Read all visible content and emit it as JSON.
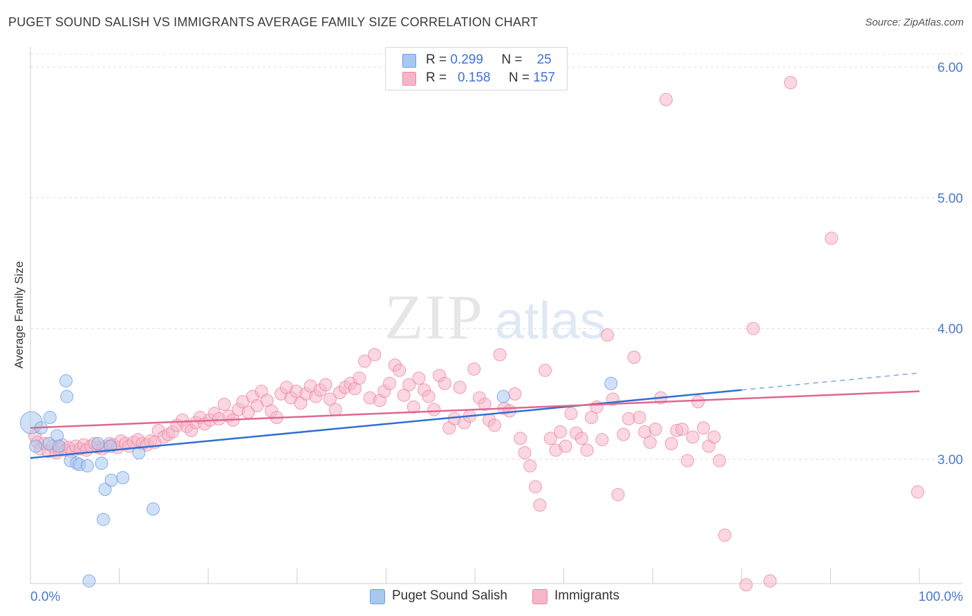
{
  "title": "PUGET SOUND SALISH VS IMMIGRANTS AVERAGE FAMILY SIZE CORRELATION CHART",
  "source": "Source: ZipAtlas.com",
  "watermark": {
    "zip": "ZIP",
    "atlas": "atlas"
  },
  "legend_top": {
    "rows": [
      {
        "r_label": "R =",
        "r_value": "0.299",
        "n_label": "N =",
        "n_value": "25",
        "color": "#a9c8f0"
      },
      {
        "r_label": "R =",
        "r_value": "0.158",
        "n_label": "N =",
        "n_value": "157",
        "color": "#f6b6c9"
      }
    ]
  },
  "chart_data": {
    "type": "scatter",
    "title": "PUGET SOUND SALISH VS IMMIGRANTS AVERAGE FAMILY SIZE CORRELATION CHART",
    "xlabel": "",
    "ylabel": "Average Family Size",
    "x_tick_labels": [
      "0.0%",
      "100.0%"
    ],
    "y_tick_labels": [
      "3.00",
      "4.00",
      "5.00",
      "6.00"
    ],
    "y_ticks": [
      3.0,
      4.0,
      5.0,
      6.0
    ],
    "xlim": [
      0,
      100
    ],
    "ylim": [
      2.05,
      6.1
    ],
    "grid": true,
    "legend_position": "bottom",
    "series": [
      {
        "name": "Puget Sound Salish",
        "color": "#6b9ee0",
        "fill": "#a9c8f0",
        "points": [
          [
            0.1,
            3.28
          ],
          [
            0.6,
            3.1
          ],
          [
            1.2,
            3.24
          ],
          [
            2.1,
            3.12
          ],
          [
            2.2,
            3.32
          ],
          [
            3,
            3.18
          ],
          [
            3.2,
            3.1
          ],
          [
            4,
            3.6
          ],
          [
            4.1,
            3.48
          ],
          [
            4.5,
            2.99
          ],
          [
            5.2,
            2.97
          ],
          [
            5.5,
            2.96
          ],
          [
            6.4,
            2.95
          ],
          [
            6.6,
            2.07
          ],
          [
            7.6,
            3.12
          ],
          [
            8,
            2.97
          ],
          [
            8.2,
            2.54
          ],
          [
            8.4,
            2.77
          ],
          [
            9,
            3.1
          ],
          [
            9.1,
            2.84
          ],
          [
            10.4,
            2.86
          ],
          [
            12.2,
            3.05
          ],
          [
            13.8,
            2.62
          ],
          [
            53.2,
            3.48
          ],
          [
            65.3,
            3.58
          ]
        ],
        "trend": {
          "x0": 0,
          "y0": 3.01,
          "x1": 80,
          "y1": 3.53,
          "dash_to_x": 100,
          "dash_to_y": 3.66
        }
      },
      {
        "name": "Immigrants",
        "color": "#ec86a4",
        "fill": "#f6b6c9",
        "points": [
          [
            0.5,
            3.18
          ],
          [
            0.8,
            3.13
          ],
          [
            1.1,
            3.08
          ],
          [
            1.6,
            3.12
          ],
          [
            2,
            3.06
          ],
          [
            2.5,
            3.1
          ],
          [
            2.9,
            3.05
          ],
          [
            3.2,
            3.08
          ],
          [
            3.6,
            3.11
          ],
          [
            3.9,
            3.07
          ],
          [
            4.3,
            3.09
          ],
          [
            4.7,
            3.06
          ],
          [
            5.1,
            3.1
          ],
          [
            5.6,
            3.08
          ],
          [
            6,
            3.11
          ],
          [
            6.3,
            3.07
          ],
          [
            6.8,
            3.1
          ],
          [
            7.2,
            3.12
          ],
          [
            7.6,
            3.09
          ],
          [
            8.1,
            3.08
          ],
          [
            8.5,
            3.1
          ],
          [
            8.9,
            3.12
          ],
          [
            9.3,
            3.11
          ],
          [
            9.8,
            3.09
          ],
          [
            10.2,
            3.14
          ],
          [
            10.7,
            3.12
          ],
          [
            11.1,
            3.1
          ],
          [
            11.6,
            3.13
          ],
          [
            12.1,
            3.15
          ],
          [
            12.6,
            3.12
          ],
          [
            13.1,
            3.11
          ],
          [
            13.5,
            3.14
          ],
          [
            14,
            3.13
          ],
          [
            14.4,
            3.22
          ],
          [
            15,
            3.17
          ],
          [
            15.5,
            3.19
          ],
          [
            16,
            3.21
          ],
          [
            16.5,
            3.26
          ],
          [
            17.1,
            3.3
          ],
          [
            17.6,
            3.25
          ],
          [
            18.1,
            3.22
          ],
          [
            18.6,
            3.28
          ],
          [
            19.1,
            3.32
          ],
          [
            19.6,
            3.27
          ],
          [
            20.2,
            3.3
          ],
          [
            20.7,
            3.35
          ],
          [
            21.2,
            3.31
          ],
          [
            21.8,
            3.42
          ],
          [
            22.3,
            3.33
          ],
          [
            22.8,
            3.3
          ],
          [
            23.4,
            3.38
          ],
          [
            23.9,
            3.44
          ],
          [
            24.5,
            3.36
          ],
          [
            25,
            3.48
          ],
          [
            25.5,
            3.41
          ],
          [
            26,
            3.52
          ],
          [
            26.6,
            3.45
          ],
          [
            27.1,
            3.37
          ],
          [
            27.7,
            3.32
          ],
          [
            28.2,
            3.5
          ],
          [
            28.8,
            3.55
          ],
          [
            29.3,
            3.47
          ],
          [
            29.9,
            3.52
          ],
          [
            30.4,
            3.43
          ],
          [
            31,
            3.5
          ],
          [
            31.5,
            3.56
          ],
          [
            32.1,
            3.48
          ],
          [
            32.6,
            3.53
          ],
          [
            33.2,
            3.57
          ],
          [
            33.7,
            3.46
          ],
          [
            34.3,
            3.38
          ],
          [
            34.8,
            3.51
          ],
          [
            35.4,
            3.55
          ],
          [
            36,
            3.58
          ],
          [
            36.5,
            3.54
          ],
          [
            37,
            3.62
          ],
          [
            37.6,
            3.75
          ],
          [
            38.2,
            3.47
          ],
          [
            38.7,
            3.8
          ],
          [
            39.3,
            3.45
          ],
          [
            39.8,
            3.52
          ],
          [
            40.4,
            3.58
          ],
          [
            41,
            3.72
          ],
          [
            41.5,
            3.68
          ],
          [
            42,
            3.49
          ],
          [
            42.6,
            3.57
          ],
          [
            43.1,
            3.4
          ],
          [
            43.7,
            3.62
          ],
          [
            44.3,
            3.53
          ],
          [
            44.8,
            3.48
          ],
          [
            45.4,
            3.38
          ],
          [
            46,
            3.64
          ],
          [
            46.6,
            3.58
          ],
          [
            47.1,
            3.24
          ],
          [
            47.7,
            3.31
          ],
          [
            48.3,
            3.55
          ],
          [
            48.8,
            3.28
          ],
          [
            49.4,
            3.33
          ],
          [
            49.9,
            3.69
          ],
          [
            50.5,
            3.47
          ],
          [
            51.1,
            3.42
          ],
          [
            51.6,
            3.3
          ],
          [
            52.2,
            3.26
          ],
          [
            52.8,
            3.8
          ],
          [
            53.3,
            3.39
          ],
          [
            53.9,
            3.37
          ],
          [
            54.5,
            3.5
          ],
          [
            55.1,
            3.16
          ],
          [
            55.6,
            3.05
          ],
          [
            56.2,
            2.95
          ],
          [
            56.8,
            2.79
          ],
          [
            57.3,
            2.65
          ],
          [
            57.9,
            3.68
          ],
          [
            58.5,
            3.16
          ],
          [
            59.1,
            3.07
          ],
          [
            59.6,
            3.21
          ],
          [
            60.2,
            3.1
          ],
          [
            60.8,
            3.35
          ],
          [
            61.4,
            3.2
          ],
          [
            62,
            3.16
          ],
          [
            62.6,
            3.07
          ],
          [
            63.1,
            3.32
          ],
          [
            63.7,
            3.4
          ],
          [
            64.3,
            3.15
          ],
          [
            64.9,
            3.95
          ],
          [
            65.5,
            3.46
          ],
          [
            66.1,
            2.73
          ],
          [
            66.7,
            3.19
          ],
          [
            67.3,
            3.31
          ],
          [
            67.9,
            3.78
          ],
          [
            68.5,
            3.32
          ],
          [
            69.1,
            3.21
          ],
          [
            69.7,
            3.13
          ],
          [
            70.3,
            3.23
          ],
          [
            70.9,
            3.47
          ],
          [
            71.5,
            5.75
          ],
          [
            72.1,
            3.12
          ],
          [
            72.7,
            3.22
          ],
          [
            73.3,
            3.23
          ],
          [
            73.9,
            2.99
          ],
          [
            74.5,
            3.17
          ],
          [
            75.1,
            3.44
          ],
          [
            75.7,
            3.24
          ],
          [
            76.3,
            3.1
          ],
          [
            76.9,
            3.17
          ],
          [
            77.5,
            2.99
          ],
          [
            78.1,
            2.42
          ],
          [
            80.5,
            2.04
          ],
          [
            81.3,
            4.0
          ],
          [
            83.2,
            2.07
          ],
          [
            85.5,
            5.88
          ],
          [
            90.1,
            4.69
          ],
          [
            99.8,
            2.75
          ]
        ],
        "trend": {
          "x0": 0,
          "y0": 3.24,
          "x1": 100,
          "y1": 3.52
        }
      }
    ]
  }
}
